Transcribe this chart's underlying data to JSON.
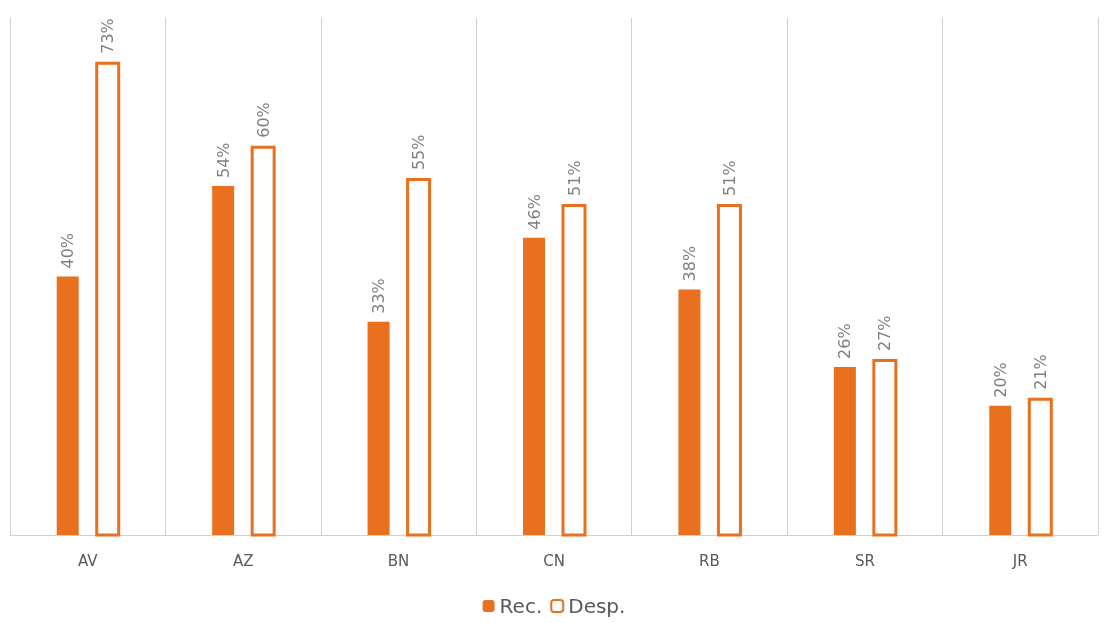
{
  "chart_data": {
    "type": "bar",
    "categories": [
      "AV",
      "AZ",
      "BN",
      "CN",
      "RB",
      "SR",
      "JR"
    ],
    "series": [
      {
        "name": "Rec.",
        "color": "#e8701f",
        "values": [
          40,
          54,
          33,
          46,
          38,
          26,
          20
        ],
        "value_labels": [
          "40%",
          "54%",
          "33%",
          "46%",
          "38%",
          "26%",
          "20%"
        ]
      },
      {
        "name": "Desp.",
        "color": "#e8701f",
        "values": [
          73,
          60,
          55,
          51,
          51,
          27,
          21
        ],
        "value_labels": [
          "73%",
          "60%",
          "55%",
          "51%",
          "51%",
          "27%",
          "21%"
        ]
      }
    ],
    "grid": "x",
    "legend": "bottom"
  }
}
